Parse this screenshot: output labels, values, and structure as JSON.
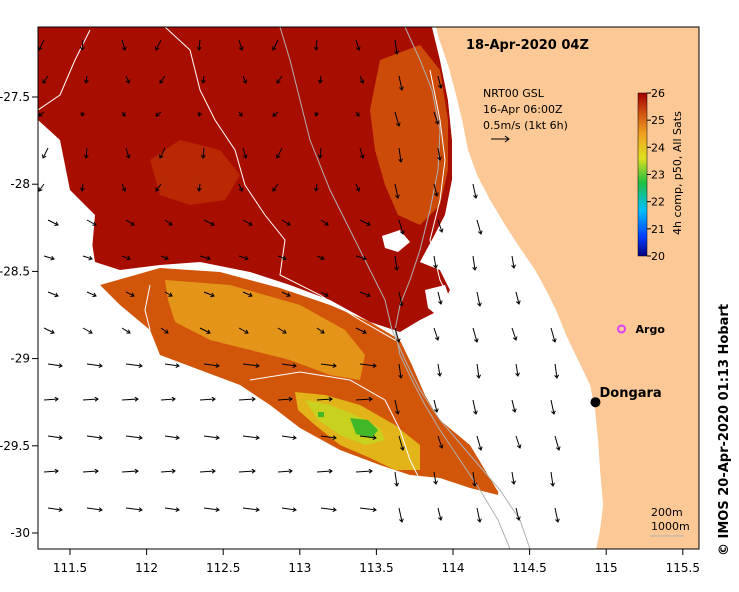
{
  "title": "18-Apr-2020 04Z",
  "current_info": {
    "line1": "NRT00 GSL",
    "line2": "16-Apr 06:00Z",
    "scale": "0.5m/s (1kt 6h)"
  },
  "colorbar": {
    "label": "4h comp, p50, All Sats",
    "ticks": [
      "20",
      "21",
      "22",
      "23",
      "24",
      "25",
      "26"
    ]
  },
  "places": [
    {
      "name": "Argo",
      "lon": 115.1,
      "lat": -28.83,
      "color": "#e040fb"
    },
    {
      "name": "Dongara",
      "lon": 114.93,
      "lat": -29.25,
      "color": "#000000"
    }
  ],
  "contour_legend": {
    "a": "200m",
    "b": "1000m"
  },
  "credit": "© IMOS 20-Apr-2020 01:13 Hobart",
  "axes": {
    "x_ticks": [
      "111.5",
      "112",
      "112.5",
      "113",
      "113.5",
      "114",
      "114.5",
      "115",
      "115.5"
    ],
    "y_ticks": [
      "-27.5",
      "-28",
      "-28.5",
      "-29",
      "-29.5",
      "-30"
    ]
  },
  "colors": {
    "land": "#fcc895",
    "sst_hot": "#a80e00",
    "sst_warm": "#d2560a",
    "sst_mid": "#e49418",
    "sst_cool": "#e2c61c",
    "sst_green": "#60c22a"
  }
}
